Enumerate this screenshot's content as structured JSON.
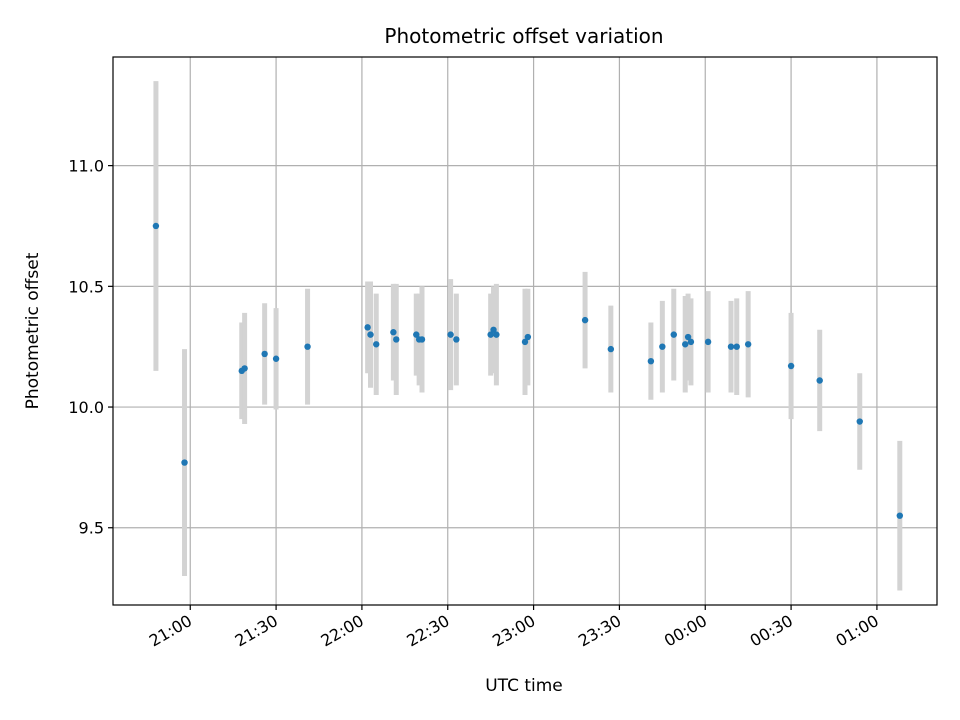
{
  "chart_data": {
    "type": "scatter",
    "title": "Photometric offset variation",
    "xlabel": "UTC time",
    "ylabel": "Photometric offset",
    "xlim": [
      "20:33",
      "01:21"
    ],
    "ylim": [
      9.18,
      11.45
    ],
    "grid": true,
    "x_ticks": [
      "21:00",
      "21:30",
      "22:00",
      "22:30",
      "23:00",
      "23:30",
      "00:00",
      "00:30",
      "01:00"
    ],
    "y_ticks": [
      "9.5",
      "10.0",
      "10.5",
      "11.0"
    ],
    "marker_color": "#1f77b4",
    "errorbar_color": "#d3d3d3",
    "points": [
      {
        "t": "20:48",
        "y": 10.75,
        "err": 0.6
      },
      {
        "t": "20:58",
        "y": 9.77,
        "err": 0.47
      },
      {
        "t": "21:18",
        "y": 10.15,
        "err": 0.2
      },
      {
        "t": "21:19",
        "y": 10.16,
        "err": 0.23
      },
      {
        "t": "21:26",
        "y": 10.22,
        "err": 0.21
      },
      {
        "t": "21:30",
        "y": 10.2,
        "err": 0.21
      },
      {
        "t": "21:41",
        "y": 10.25,
        "err": 0.24
      },
      {
        "t": "22:02",
        "y": 10.33,
        "err": 0.19
      },
      {
        "t": "22:03",
        "y": 10.3,
        "err": 0.22
      },
      {
        "t": "22:05",
        "y": 10.26,
        "err": 0.21
      },
      {
        "t": "22:11",
        "y": 10.31,
        "err": 0.2
      },
      {
        "t": "22:12",
        "y": 10.28,
        "err": 0.23
      },
      {
        "t": "22:19",
        "y": 10.3,
        "err": 0.17
      },
      {
        "t": "22:20",
        "y": 10.28,
        "err": 0.19
      },
      {
        "t": "22:21",
        "y": 10.28,
        "err": 0.22
      },
      {
        "t": "22:31",
        "y": 10.3,
        "err": 0.23
      },
      {
        "t": "22:33",
        "y": 10.28,
        "err": 0.19
      },
      {
        "t": "22:45",
        "y": 10.3,
        "err": 0.17
      },
      {
        "t": "22:46",
        "y": 10.32,
        "err": 0.18
      },
      {
        "t": "22:47",
        "y": 10.3,
        "err": 0.21
      },
      {
        "t": "22:57",
        "y": 10.27,
        "err": 0.22
      },
      {
        "t": "22:58",
        "y": 10.29,
        "err": 0.2
      },
      {
        "t": "23:18",
        "y": 10.36,
        "err": 0.2
      },
      {
        "t": "23:27",
        "y": 10.24,
        "err": 0.18
      },
      {
        "t": "23:41",
        "y": 10.19,
        "err": 0.16
      },
      {
        "t": "23:45",
        "y": 10.25,
        "err": 0.19
      },
      {
        "t": "23:49",
        "y": 10.3,
        "err": 0.19
      },
      {
        "t": "23:53",
        "y": 10.26,
        "err": 0.2
      },
      {
        "t": "23:54",
        "y": 10.29,
        "err": 0.18
      },
      {
        "t": "23:55",
        "y": 10.27,
        "err": 0.18
      },
      {
        "t": "00:01",
        "y": 10.27,
        "err": 0.21
      },
      {
        "t": "00:09",
        "y": 10.25,
        "err": 0.19
      },
      {
        "t": "00:11",
        "y": 10.25,
        "err": 0.2
      },
      {
        "t": "00:15",
        "y": 10.26,
        "err": 0.22
      },
      {
        "t": "00:30",
        "y": 10.17,
        "err": 0.22
      },
      {
        "t": "00:40",
        "y": 10.11,
        "err": 0.21
      },
      {
        "t": "00:54",
        "y": 9.94,
        "err": 0.2
      },
      {
        "t": "01:08",
        "y": 9.55,
        "err": 0.31
      }
    ]
  }
}
